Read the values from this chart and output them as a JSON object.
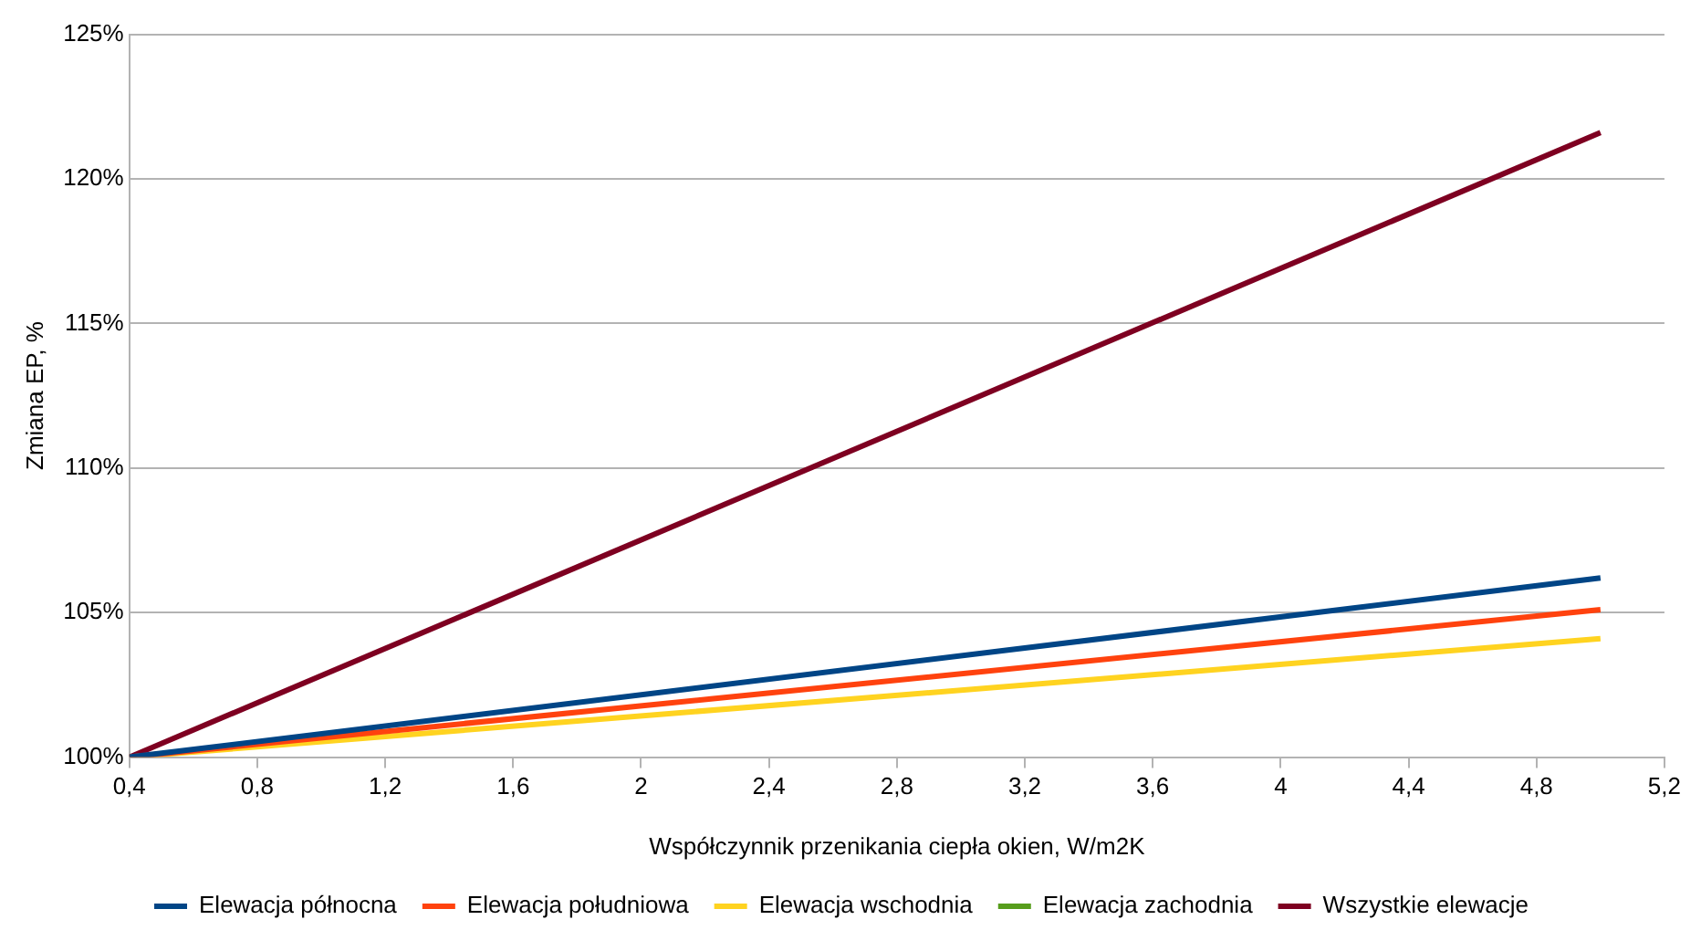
{
  "chart_data": {
    "type": "line",
    "xlabel": "Współczynnik przenikania ciepła okien, W/m2K",
    "ylabel": "Zmiana EP, %",
    "x": [
      0.4,
      5.0
    ],
    "series": [
      {
        "name": "Elewacja północna",
        "color": "#004586",
        "values": [
          100,
          106.2
        ]
      },
      {
        "name": "Elewacja południowa",
        "color": "#ff420e",
        "values": [
          100,
          105.1
        ]
      },
      {
        "name": "Elewacja wschodnia",
        "color": "#ffd320",
        "values": [
          100,
          104.1
        ]
      },
      {
        "name": "Elewacja zachodnia",
        "color": "#579d1c",
        "values": [
          null,
          null
        ]
      },
      {
        "name": "Wszystkie elewacje",
        "color": "#7e0021",
        "values": [
          100,
          121.6
        ]
      }
    ],
    "xlim": [
      0.4,
      5.2
    ],
    "xticks": [
      {
        "value": 0.4,
        "label": "0,4"
      },
      {
        "value": 0.8,
        "label": "0,8"
      },
      {
        "value": 1.2,
        "label": "1,2"
      },
      {
        "value": 1.6,
        "label": "1,6"
      },
      {
        "value": 2,
        "label": "2"
      },
      {
        "value": 2.4,
        "label": "2,4"
      },
      {
        "value": 2.8,
        "label": "2,8"
      },
      {
        "value": 3.2,
        "label": "3,2"
      },
      {
        "value": 3.6,
        "label": "3,6"
      },
      {
        "value": 4,
        "label": "4"
      },
      {
        "value": 4.4,
        "label": "4,4"
      },
      {
        "value": 4.8,
        "label": "4,8"
      },
      {
        "value": 5.2,
        "label": "5,2"
      }
    ],
    "ylim": [
      100,
      125
    ],
    "yticks": [
      {
        "value": 100,
        "label": "100%"
      },
      {
        "value": 105,
        "label": "105%"
      },
      {
        "value": 110,
        "label": "110%"
      },
      {
        "value": 115,
        "label": "115%"
      },
      {
        "value": 120,
        "label": "120%"
      },
      {
        "value": 125,
        "label": "125%"
      }
    ],
    "grid": "y",
    "legend": "bottom",
    "marker": "none",
    "line_style": "solid"
  }
}
